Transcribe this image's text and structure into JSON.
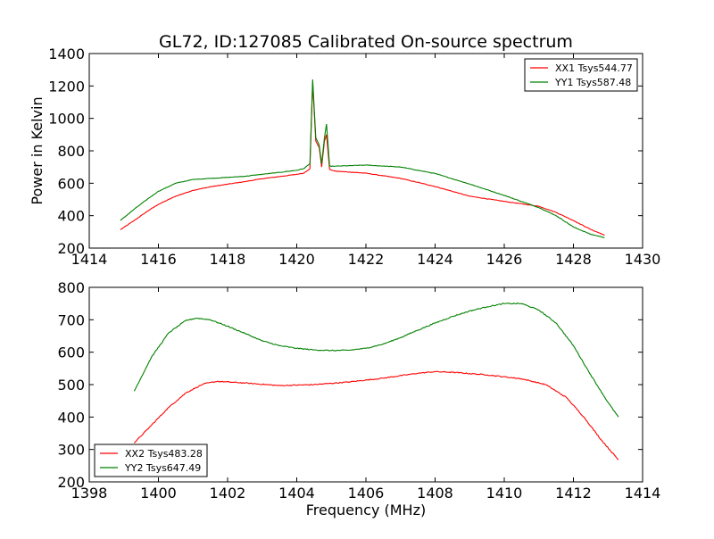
{
  "title": "GL72, ID:127085 Calibrated On-source spectrum",
  "colors": {
    "xx": "#ff0000",
    "yy": "#008000",
    "axes": "#000000",
    "background": "#ffffff"
  },
  "chart_data": [
    {
      "type": "line",
      "ylabel": "Power in Kelvin",
      "xlabel": "",
      "xlim": [
        1414,
        1430
      ],
      "ylim": [
        200,
        1400
      ],
      "xticks": [
        1414,
        1416,
        1418,
        1420,
        1422,
        1424,
        1426,
        1428,
        1430
      ],
      "yticks": [
        200,
        400,
        600,
        800,
        1000,
        1200,
        1400
      ],
      "grid": false,
      "legend_position": "top-right",
      "series": [
        {
          "name": "XX1 Tsys544.77",
          "color": "#ff0000",
          "x": [
            1414.9,
            1415.3,
            1415.7,
            1416.0,
            1416.5,
            1417.0,
            1417.5,
            1418.0,
            1418.5,
            1419.0,
            1419.5,
            1420.0,
            1420.2,
            1420.38,
            1420.46,
            1420.55,
            1420.65,
            1420.72,
            1420.8,
            1420.86,
            1420.95,
            1421.1,
            1422.0,
            1423.0,
            1424.0,
            1425.0,
            1426.0,
            1427.0,
            1427.5,
            1428.0,
            1428.5,
            1428.9
          ],
          "y": [
            313,
            370,
            430,
            470,
            520,
            556,
            578,
            594,
            610,
            628,
            641,
            655,
            662,
            690,
            1220,
            860,
            820,
            700,
            860,
            900,
            685,
            675,
            662,
            630,
            580,
            520,
            488,
            458,
            420,
            370,
            315,
            280
          ]
        },
        {
          "name": "YY1 Tsys587.48",
          "color": "#008000",
          "x": [
            1414.9,
            1415.3,
            1415.7,
            1416.0,
            1416.5,
            1417.0,
            1417.5,
            1418.0,
            1418.5,
            1419.0,
            1419.5,
            1420.0,
            1420.2,
            1420.38,
            1420.46,
            1420.55,
            1420.65,
            1420.72,
            1420.8,
            1420.86,
            1420.95,
            1421.1,
            1422.0,
            1423.0,
            1424.0,
            1425.0,
            1426.0,
            1427.0,
            1427.5,
            1428.0,
            1428.5,
            1428.9
          ],
          "y": [
            370,
            440,
            505,
            550,
            600,
            623,
            630,
            636,
            643,
            655,
            667,
            680,
            690,
            720,
            1240,
            880,
            835,
            720,
            880,
            965,
            705,
            705,
            712,
            700,
            660,
            595,
            525,
            450,
            400,
            330,
            285,
            265
          ]
        }
      ]
    },
    {
      "type": "line",
      "ylabel": "",
      "xlabel": "Frequency (MHz)",
      "xlim": [
        1398,
        1414
      ],
      "ylim": [
        200,
        800
      ],
      "xticks": [
        1398,
        1400,
        1402,
        1404,
        1406,
        1408,
        1410,
        1412,
        1414
      ],
      "yticks": [
        200,
        300,
        400,
        500,
        600,
        700,
        800
      ],
      "grid": false,
      "legend_position": "bottom-left",
      "series": [
        {
          "name": "XX2 Tsys483.28",
          "color": "#ff0000",
          "x": [
            1399.3,
            1399.8,
            1400.3,
            1400.8,
            1401.3,
            1401.7,
            1402.5,
            1403.5,
            1404.5,
            1405.5,
            1406.5,
            1407.5,
            1408.0,
            1408.5,
            1409.5,
            1410.5,
            1411.2,
            1411.8,
            1412.3,
            1412.8,
            1413.3
          ],
          "y": [
            320,
            375,
            430,
            475,
            502,
            510,
            505,
            497,
            500,
            508,
            520,
            535,
            540,
            538,
            530,
            518,
            500,
            460,
            400,
            330,
            268
          ]
        },
        {
          "name": "YY2 Tsys647.49",
          "color": "#008000",
          "x": [
            1399.3,
            1399.8,
            1400.3,
            1400.8,
            1401.1,
            1401.5,
            1402.0,
            1402.5,
            1403.0,
            1403.5,
            1404.0,
            1404.5,
            1405.0,
            1405.5,
            1406.0,
            1406.5,
            1407.0,
            1407.5,
            1408.0,
            1408.5,
            1409.0,
            1409.5,
            1410.0,
            1410.5,
            1411.0,
            1411.5,
            1412.0,
            1412.5,
            1413.0,
            1413.3
          ],
          "y": [
            480,
            585,
            660,
            698,
            705,
            700,
            680,
            658,
            635,
            620,
            612,
            607,
            605,
            606,
            612,
            625,
            645,
            668,
            690,
            710,
            727,
            740,
            750,
            750,
            730,
            690,
            620,
            530,
            445,
            400
          ]
        }
      ]
    }
  ]
}
